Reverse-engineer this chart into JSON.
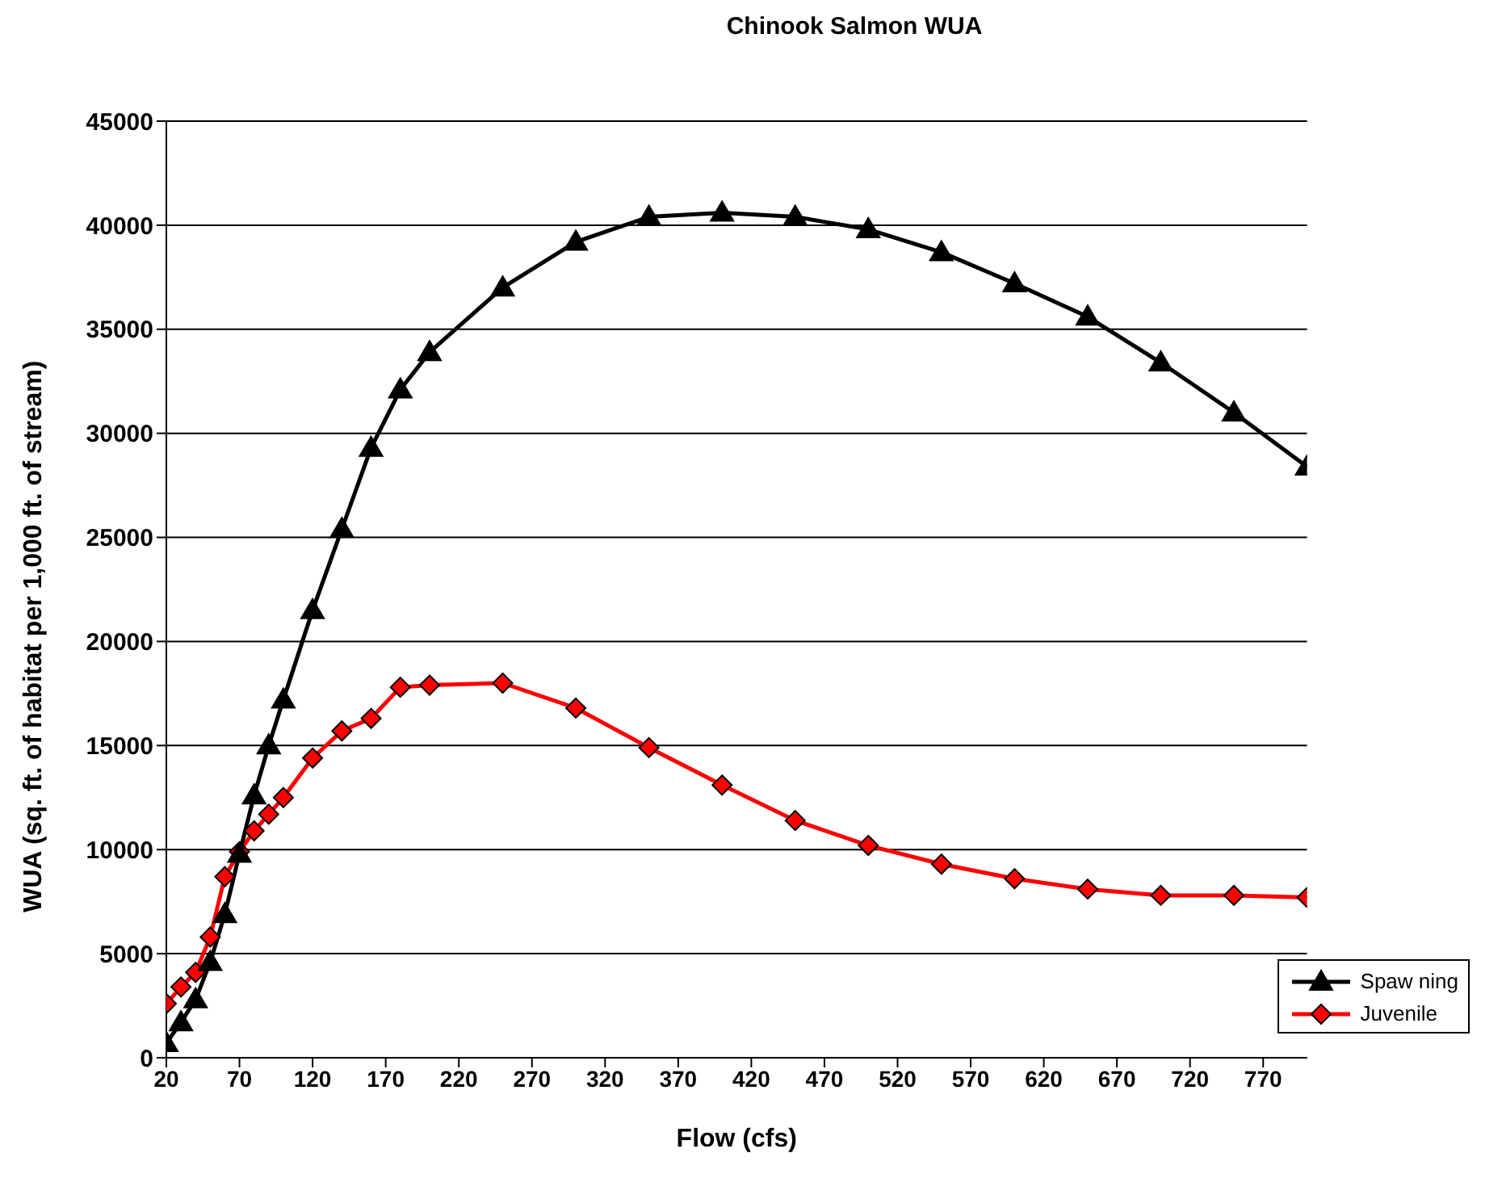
{
  "chart_data": {
    "type": "line",
    "title": "Chinook Salmon WUA",
    "xlabel": "Flow (cfs)",
    "ylabel": "WUA (sq. ft. of habitat per 1,000 ft. of stream)",
    "x": [
      20,
      30,
      40,
      50,
      60,
      70,
      80,
      90,
      100,
      120,
      140,
      160,
      180,
      200,
      250,
      300,
      350,
      400,
      450,
      500,
      550,
      600,
      650,
      700,
      750,
      800
    ],
    "series": [
      {
        "name": "Spaw ning",
        "color": "#000000",
        "marker": "triangle",
        "values": [
          700,
          1700,
          2800,
          4600,
          6900,
          9800,
          12600,
          15000,
          17200,
          21500,
          25400,
          29300,
          32100,
          33900,
          37000,
          39200,
          40400,
          40600,
          40400,
          39800,
          38700,
          37200,
          35600,
          33400,
          31000,
          28400
        ]
      },
      {
        "name": "Juvenile",
        "color": "#ff0000",
        "marker": "diamond",
        "values": [
          2600,
          3400,
          4100,
          5800,
          8700,
          9900,
          10900,
          11700,
          12500,
          14400,
          15700,
          16300,
          17800,
          17900,
          18000,
          16800,
          14900,
          13100,
          11400,
          10200,
          9300,
          8600,
          8100,
          7800,
          7800,
          7700
        ]
      }
    ],
    "xlim": [
      20,
      800
    ],
    "xticks": [
      20,
      70,
      120,
      170,
      220,
      270,
      320,
      370,
      420,
      470,
      520,
      570,
      620,
      670,
      720,
      770
    ],
    "ylim": [
      0,
      45000
    ],
    "yticks": [
      0,
      5000,
      10000,
      15000,
      20000,
      25000,
      30000,
      35000,
      40000,
      45000
    ],
    "grid": "y",
    "legend": "bottom right",
    "line_style": "solid"
  }
}
